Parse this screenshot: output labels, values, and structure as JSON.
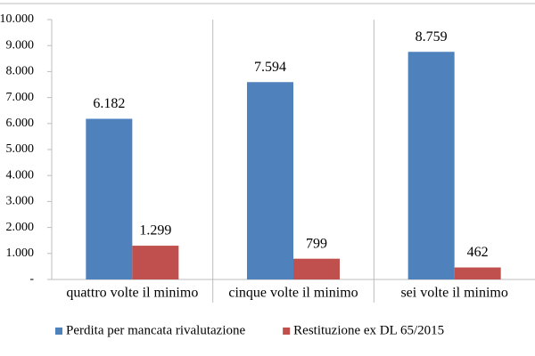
{
  "chart_data": {
    "type": "bar",
    "categories": [
      "quattro volte il minimo",
      "cinque volte il minimo",
      "sei volte il minimo"
    ],
    "series": [
      {
        "name": "Perdita per mancata rivalutazione",
        "color": "#4f81bd",
        "values": [
          6182,
          7594,
          8759
        ],
        "value_labels": [
          "6.182",
          "7.594",
          "8.759"
        ]
      },
      {
        "name": "Restituzione ex DL 65/2015",
        "color": "#c0504d",
        "values": [
          1299,
          799,
          462
        ],
        "value_labels": [
          "1.299",
          "799",
          "462"
        ]
      }
    ],
    "ylim": [
      0,
      10000
    ],
    "yticks": [
      {
        "value": 0,
        "label": "-"
      },
      {
        "value": 1000,
        "label": "1.000"
      },
      {
        "value": 2000,
        "label": "2.000"
      },
      {
        "value": 3000,
        "label": "3.000"
      },
      {
        "value": 4000,
        "label": "4.000"
      },
      {
        "value": 5000,
        "label": "5.000"
      },
      {
        "value": 6000,
        "label": "6.000"
      },
      {
        "value": 7000,
        "label": "7.000"
      },
      {
        "value": 8000,
        "label": "8.000"
      },
      {
        "value": 9000,
        "label": "9.000"
      },
      {
        "value": 10000,
        "label": "10.000"
      }
    ],
    "grid": false,
    "legend": "bottom"
  }
}
